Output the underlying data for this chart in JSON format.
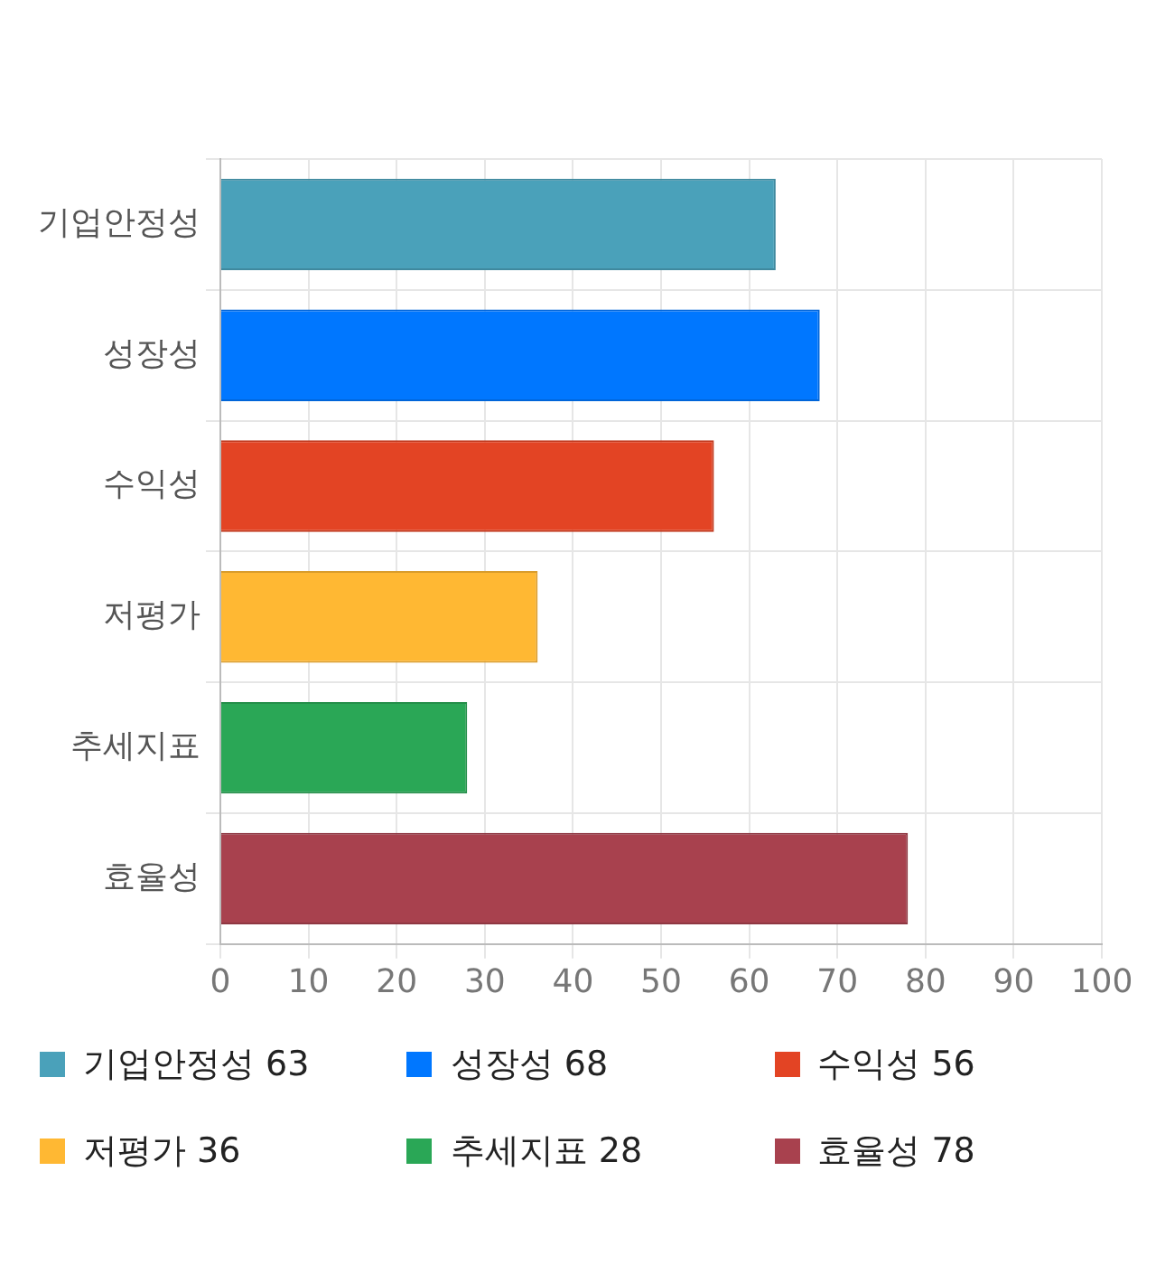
{
  "chart_data": {
    "type": "bar",
    "orientation": "horizontal",
    "stacked": true,
    "categories": [
      "기업안정성",
      "성장성",
      "수익성",
      "저평가",
      "추세지표",
      "효율성"
    ],
    "series": [
      {
        "name": "기업안정성 63",
        "color": "#4aa1ba",
        "values": [
          63,
          null,
          null,
          null,
          null,
          null
        ]
      },
      {
        "name": "성장성 68",
        "color": "#0077ff",
        "values": [
          null,
          68,
          null,
          null,
          null,
          null
        ]
      },
      {
        "name": "수익성 56",
        "color": "#e34424",
        "values": [
          null,
          null,
          56,
          null,
          null,
          null
        ]
      },
      {
        "name": "저평가 36",
        "color": "#ffb833",
        "values": [
          null,
          null,
          null,
          36,
          null,
          null
        ]
      },
      {
        "name": "추세지표 28",
        "color": "#2aa756",
        "values": [
          null,
          null,
          null,
          null,
          28,
          null
        ]
      },
      {
        "name": "효율성 78",
        "color": "#a8414e",
        "values": [
          null,
          null,
          null,
          null,
          null,
          78
        ]
      }
    ],
    "xlim": [
      0,
      100
    ],
    "xticks": [
      0,
      10,
      20,
      30,
      40,
      50,
      60,
      70,
      80,
      90,
      100
    ],
    "grid": true,
    "legend": "bottom"
  }
}
